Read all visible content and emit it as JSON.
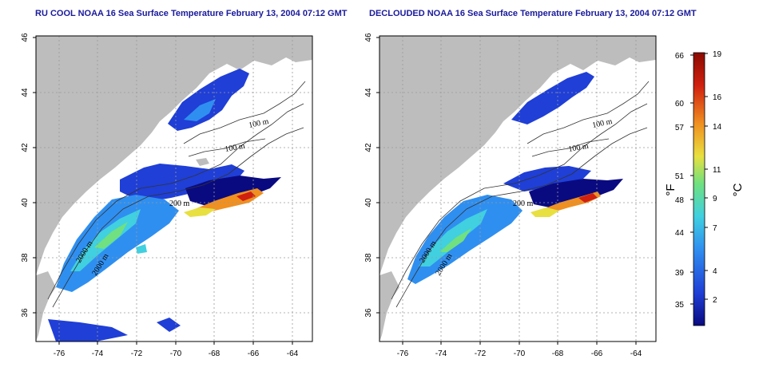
{
  "panels": [
    {
      "title": "RU COOL NOAA 16 Sea Surface Temperature February 13, 2004 07:12 GMT",
      "contour_labels": [
        "100 m",
        "100 m",
        "200 m",
        "2000 m",
        "2000 m"
      ]
    },
    {
      "title": "DECLOUDED NOAA 16 Sea Surface Temperature February 13, 2004 07:12 GMT",
      "contour_labels": [
        "100 m",
        "100 m",
        "200 m",
        "2000 m",
        "2000 m"
      ]
    }
  ],
  "axes": {
    "lon_ticks": [
      "-76",
      "-74",
      "-72",
      "-70",
      "-68",
      "-66",
      "-64"
    ],
    "lat_ticks": [
      "46",
      "44",
      "42",
      "40",
      "38",
      "36"
    ]
  },
  "colorbar": {
    "fahrenheit_ticks": [
      "66",
      "60",
      "57",
      "51",
      "48",
      "44",
      "39",
      "35"
    ],
    "celsius_ticks": [
      "19",
      "16",
      "14",
      "11",
      "9",
      "7",
      "4",
      "2"
    ],
    "unit_f": "°F",
    "unit_c": "°C"
  },
  "colors": {
    "land": "#bdbdbd",
    "grid": "#9a9a9a",
    "title": "#1a1a9c",
    "scale": [
      "#0a0a80",
      "#1f3fd6",
      "#2f8ff0",
      "#40d0e0",
      "#70e080",
      "#e8e040",
      "#f09020",
      "#d02010",
      "#8a0a00"
    ]
  }
}
